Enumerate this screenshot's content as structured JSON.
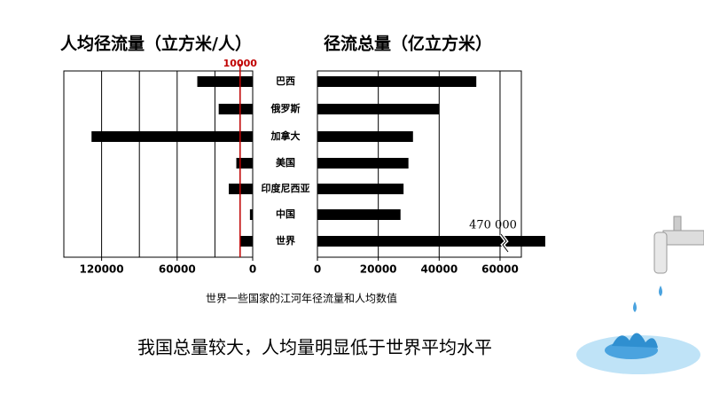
{
  "chart_data": [
    {
      "type": "hbar",
      "title": "人均径流量（立方米/人）",
      "categories": [
        "巴西",
        "俄罗斯",
        "加拿大",
        "美国",
        "印度尼西亚",
        "中国",
        "世界"
      ],
      "values": [
        44000,
        27000,
        128000,
        13000,
        19000,
        2200,
        9800
      ],
      "color": "#000000",
      "xlim": [
        0,
        150000
      ],
      "reversed": true,
      "xticks": [
        0,
        60000,
        120000
      ],
      "grid_lines": [
        30000,
        60000,
        90000,
        120000
      ],
      "reference": {
        "value": 10000,
        "label": "10000",
        "color": "#c00000"
      }
    },
    {
      "type": "hbar",
      "title": "径流总量（亿立方米）",
      "values": [
        52200,
        40000,
        31400,
        29900,
        28300,
        27300,
        470000
      ],
      "value_labels": [
        null,
        null,
        null,
        null,
        null,
        null,
        "470 000"
      ],
      "color": "#000000",
      "xlim": [
        0,
        67000
      ],
      "reversed": false,
      "xticks": [
        0,
        20000,
        40000,
        60000
      ],
      "grid_lines": [
        20000,
        40000,
        60000
      ],
      "axis_break": true
    }
  ],
  "caption": "世界一些国家的江河年径流量和人均数值",
  "statement": "我国总量较大，人均量明显低于世界平均水平"
}
